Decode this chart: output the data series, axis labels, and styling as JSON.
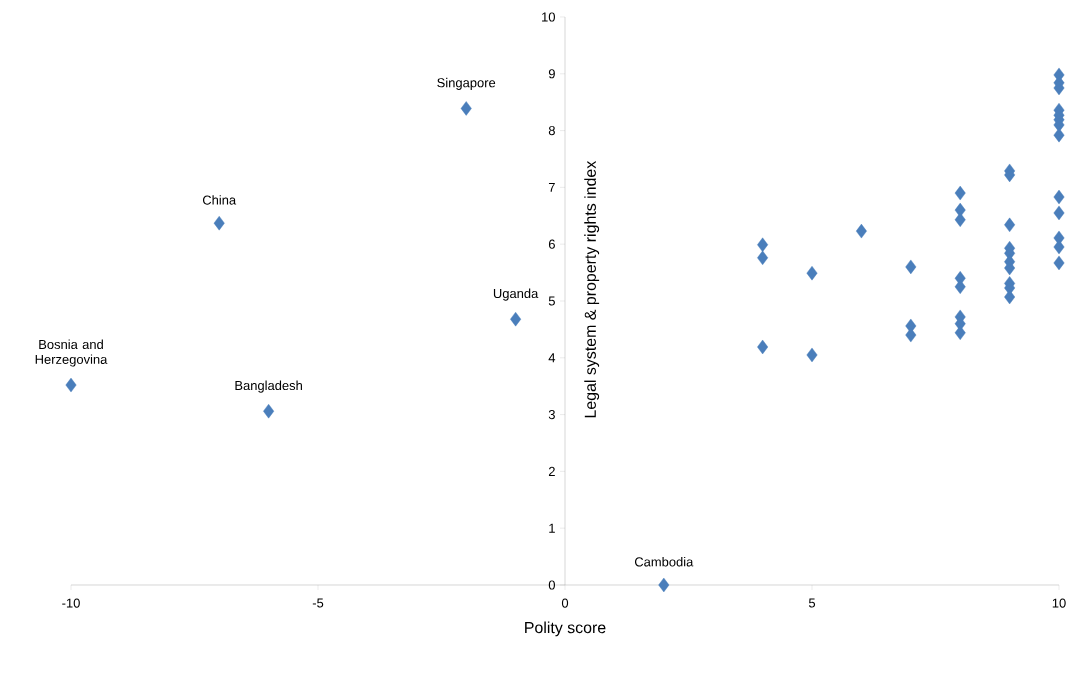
{
  "chart_data": {
    "type": "scatter",
    "xlabel": "Polity score",
    "ylabel": "Legal system & property rights index",
    "x": [
      -10,
      -7,
      -6,
      -2,
      -1,
      2,
      4,
      4,
      4,
      5,
      5,
      6,
      7,
      7,
      7,
      8,
      8,
      8,
      8,
      8,
      8,
      8,
      8,
      9,
      9,
      9,
      9,
      9,
      9,
      9,
      9,
      9,
      9,
      10,
      10,
      10,
      10,
      10,
      10,
      10,
      10,
      10,
      10,
      10,
      10,
      10
    ],
    "series": [
      {
        "color": "#4a7ebb",
        "values": [
          3.52,
          6.37,
          3.06,
          8.39,
          4.68,
          0,
          5.99,
          5.76,
          4.19,
          5.49,
          4.05,
          6.23,
          5.6,
          4.56,
          4.4,
          6.9,
          6.6,
          6.43,
          5.4,
          5.25,
          4.72,
          4.6,
          4.44,
          7.29,
          7.22,
          6.34,
          5.93,
          5.84,
          5.69,
          5.58,
          5.31,
          5.23,
          5.07,
          8.98,
          8.84,
          8.75,
          8.36,
          8.27,
          8.19,
          8.1,
          7.92,
          6.83,
          6.55,
          6.11,
          5.95,
          5.67
        ]
      }
    ],
    "xlim": [
      -10,
      10
    ],
    "xticks": [
      -10,
      -5,
      0,
      5,
      10
    ],
    "ylim": [
      0,
      10
    ],
    "yticks": [
      0,
      1,
      2,
      3,
      4,
      5,
      6,
      7,
      8,
      9,
      10
    ],
    "marker": "diamond",
    "grid": false,
    "annotations": [
      {
        "text": "Bosnia and Herzegovina",
        "x": -10,
        "y": 3.52
      },
      {
        "text": "China",
        "x": -7,
        "y": 6.37
      },
      {
        "text": "Bangladesh",
        "x": -6,
        "y": 3.06
      },
      {
        "text": "Singapore",
        "x": -2,
        "y": 8.39
      },
      {
        "text": "Uganda",
        "x": -1,
        "y": 4.68
      },
      {
        "text": "Cambodia",
        "x": 2,
        "y": 0
      }
    ]
  }
}
